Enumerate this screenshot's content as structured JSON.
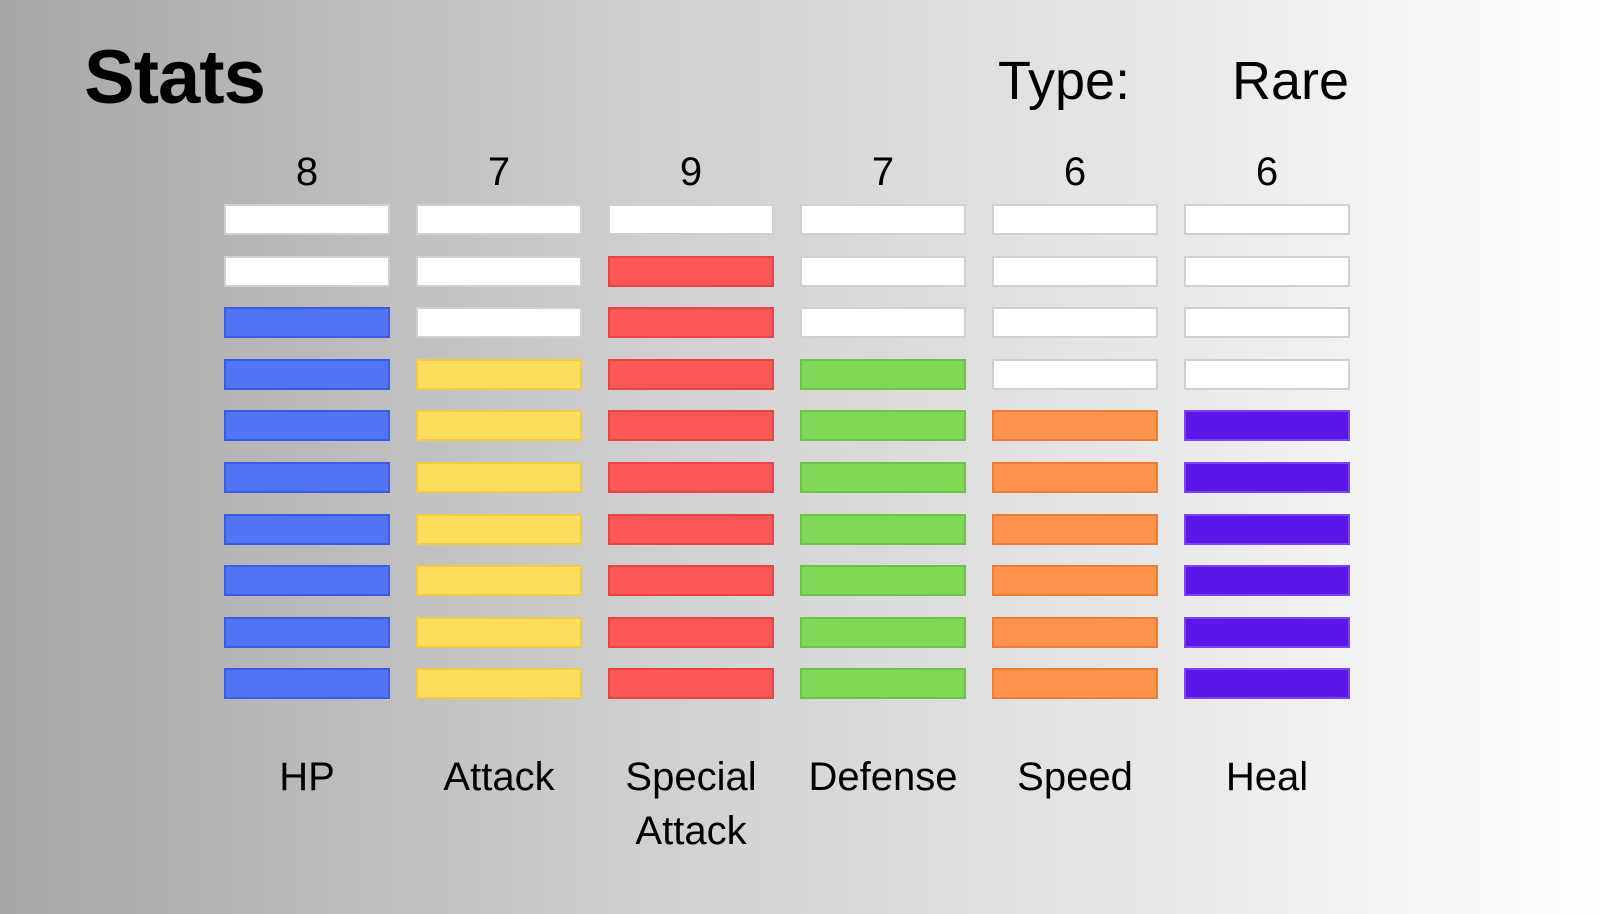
{
  "header": {
    "title": "Stats",
    "type_label": "Type:",
    "type_value": "Rare"
  },
  "stats": {
    "max": 10,
    "empty_color": "#ffffff",
    "empty_border": "#d0d0d0",
    "items": [
      {
        "label": "HP",
        "value": 8,
        "display": "8",
        "color": "#5273f6",
        "border": "#3a5ce0"
      },
      {
        "label": "Attack",
        "value": 7,
        "display": "7",
        "color": "#fddd5c",
        "border": "#f0cc45"
      },
      {
        "label": "Special Attack",
        "value": 9,
        "display": "9",
        "color": "#fc5757",
        "border": "#e84444"
      },
      {
        "label": "Defense",
        "value": 7,
        "display": "7",
        "color": "#80d956",
        "border": "#6cc444"
      },
      {
        "label": "Speed",
        "value": 6,
        "display": "6",
        "color": "#fe934e",
        "border": "#f07c34"
      },
      {
        "label": "Heal",
        "value": 6,
        "display": "6",
        "color": "#5d16e8",
        "border": "#7b44f0"
      }
    ]
  }
}
